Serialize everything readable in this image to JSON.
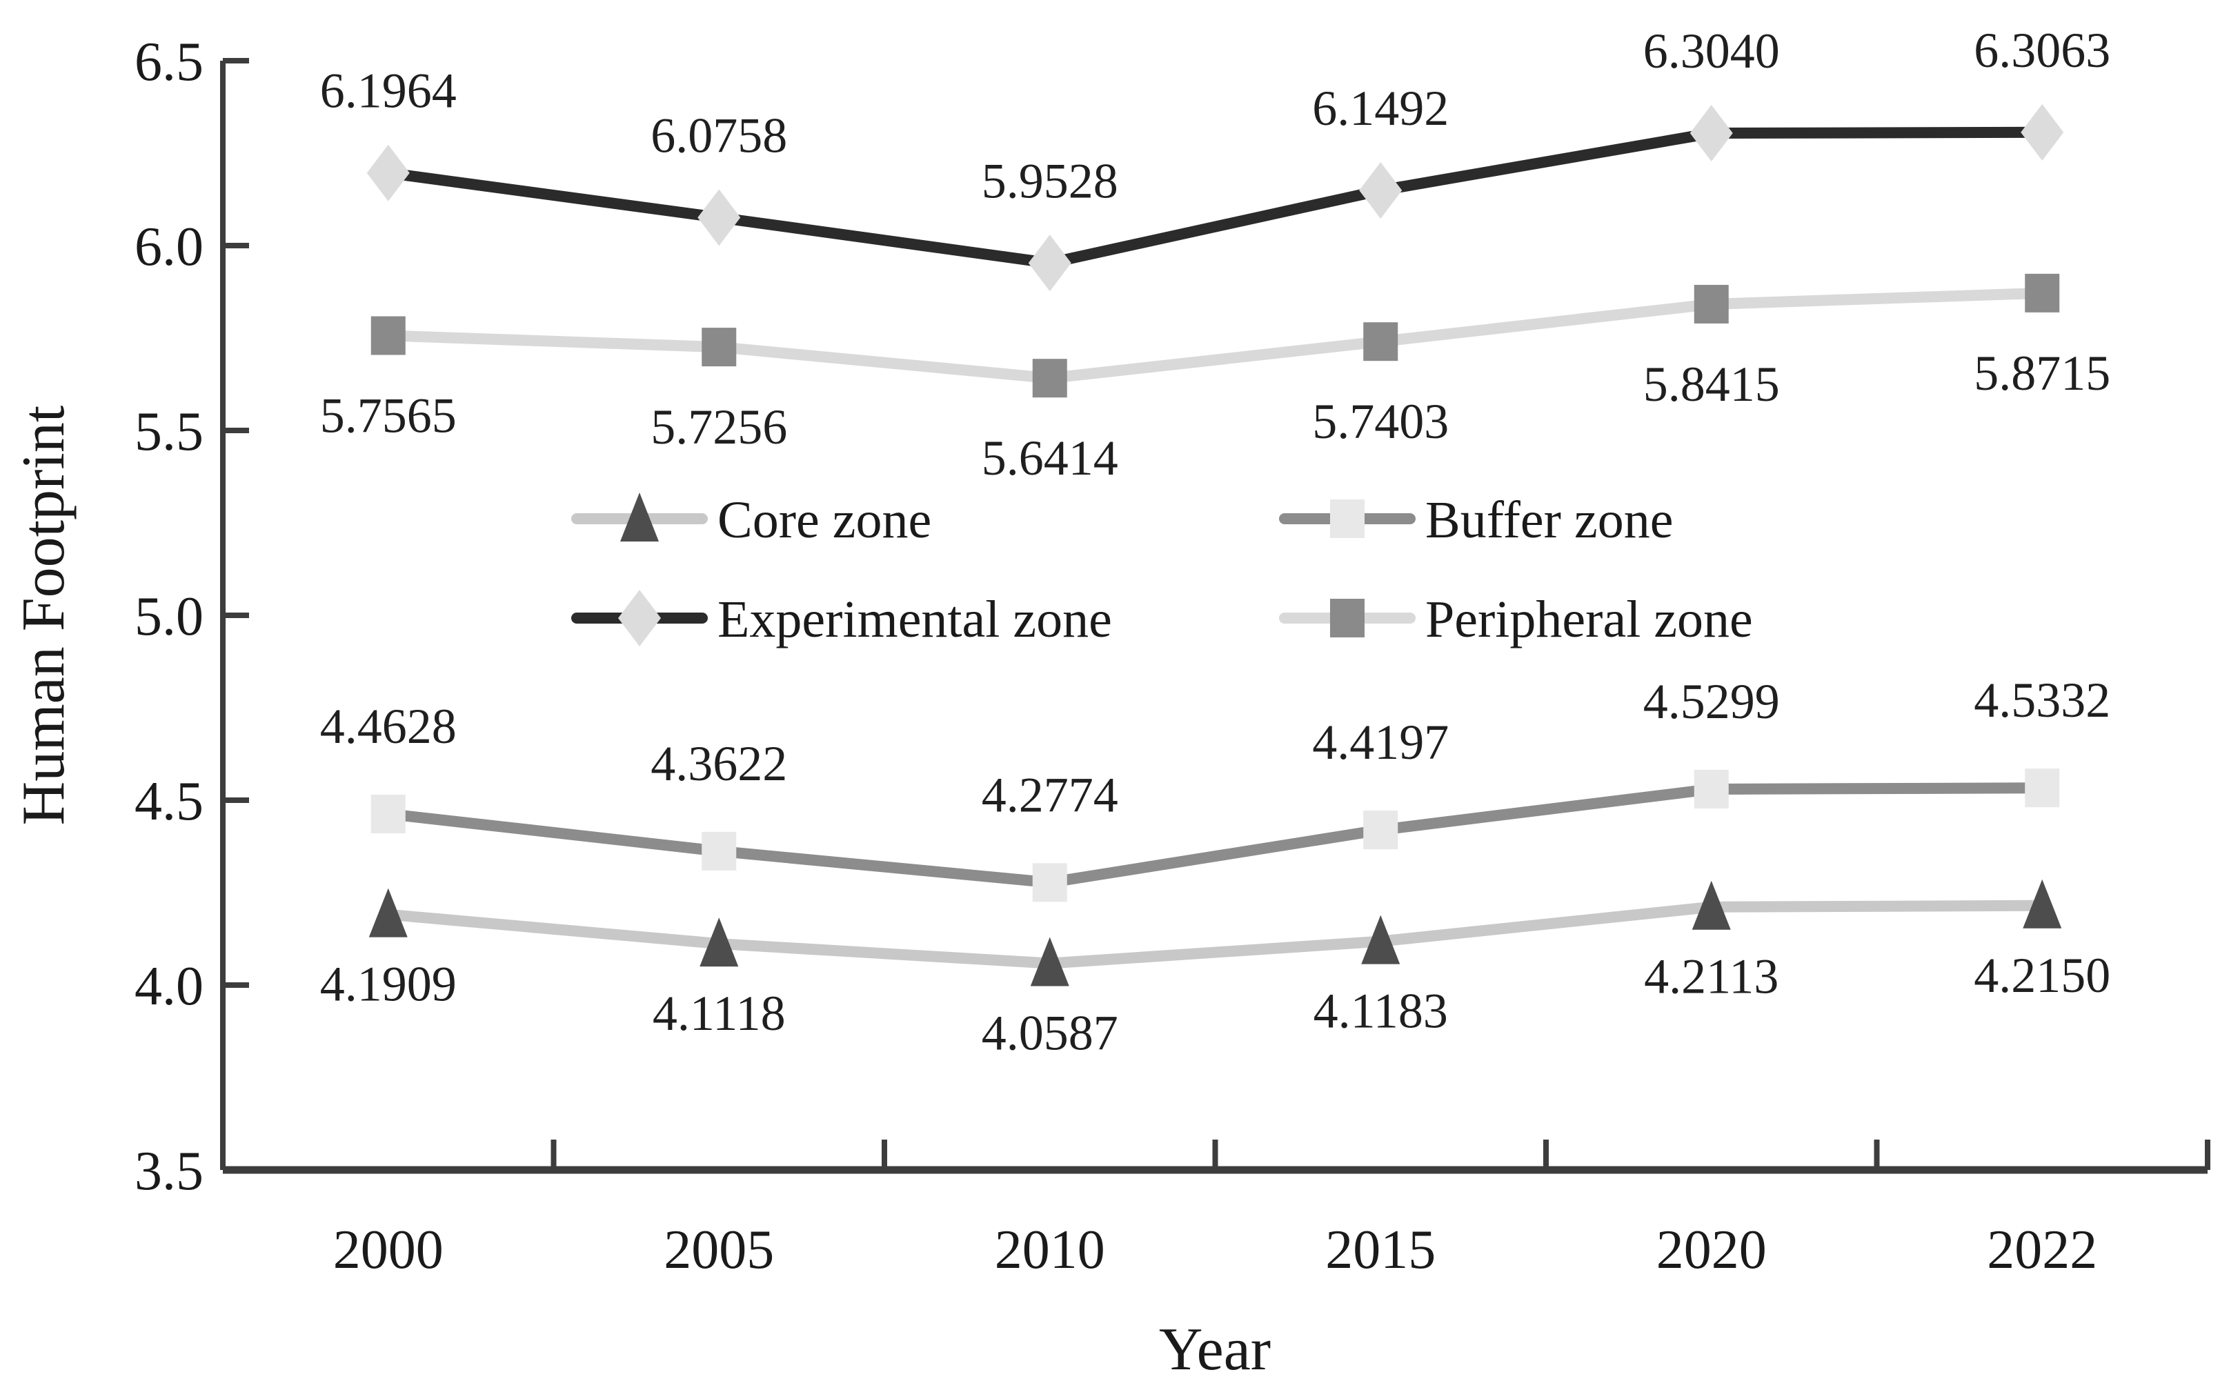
{
  "figure": {
    "background": "#ffffff",
    "text_color": "#1a1a1a",
    "axis_color": "#3d3d3d"
  },
  "chart_data": {
    "type": "line",
    "xlabel": "Year",
    "ylabel": "Human Footprint",
    "categories": [
      "2000",
      "2005",
      "2010",
      "2015",
      "2020",
      "2022"
    ],
    "ylim": [
      3.5,
      6.5
    ],
    "yticks": [
      6.5,
      6.0,
      5.5,
      5.0,
      4.5,
      4.0,
      3.5
    ],
    "ytick_labels": [
      "6.5",
      "6.0",
      "5.5",
      "5.0",
      "4.5",
      "4.0",
      "3.5"
    ],
    "grid": false,
    "data_label_decimals": 4,
    "marker_outline": "none",
    "legend": {
      "position": "inside-middle",
      "rows": [
        [
          "Core zone",
          "Buffer zone"
        ],
        [
          "Experimental zone",
          "Peripheral zone"
        ]
      ]
    },
    "series": [
      {
        "name": "Core zone",
        "marker": "triangle",
        "marker_color": "#4d4d4d",
        "line_color": "#c8c8c8",
        "label_side": "below",
        "values": [
          4.1909,
          4.1118,
          4.0587,
          4.1183,
          4.2113,
          4.215
        ]
      },
      {
        "name": "Buffer zone",
        "marker": "square",
        "marker_color": "#e8e8e8",
        "line_color": "#8c8c8c",
        "label_side": "above",
        "values": [
          4.4628,
          4.3622,
          4.2774,
          4.4197,
          4.5299,
          4.5332
        ]
      },
      {
        "name": "Experimental zone",
        "marker": "diamond",
        "marker_color": "#dcdcdc",
        "line_color": "#2b2b2b",
        "label_side": "above",
        "values": [
          6.1964,
          6.0758,
          5.9528,
          6.1492,
          6.304,
          6.3063
        ]
      },
      {
        "name": "Peripheral zone",
        "marker": "square",
        "marker_color": "#8a8a8a",
        "line_color": "#d9d9d9",
        "label_side": "below",
        "values": [
          5.7565,
          5.7256,
          5.6414,
          5.7403,
          5.8415,
          5.8715
        ]
      }
    ]
  }
}
